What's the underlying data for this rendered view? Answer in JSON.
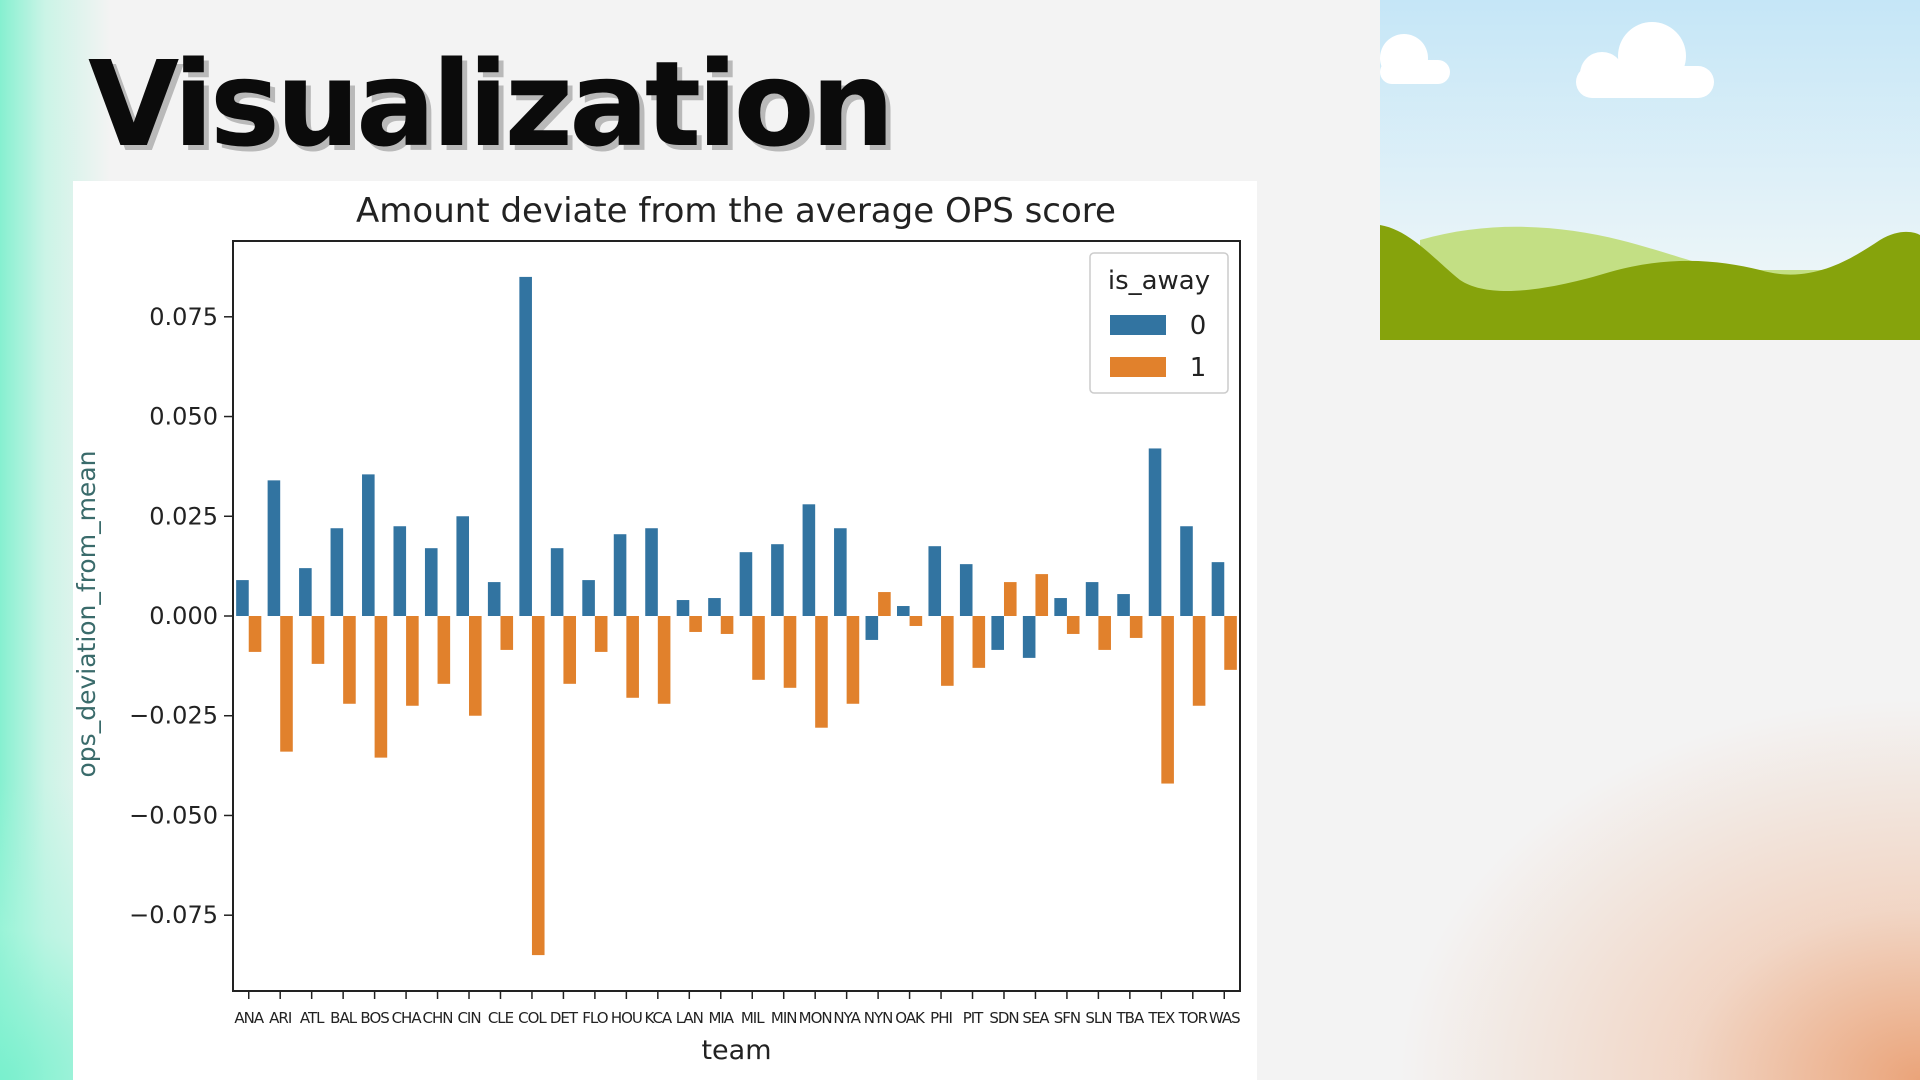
{
  "slide": {
    "title": "Visualization"
  },
  "colors": {
    "series0": "#3274a1",
    "series1": "#e1812c",
    "sky_top": "#c5e6f7",
    "hill_light": "#c3df84",
    "hill_dark": "#86a30c"
  },
  "chart_data": {
    "type": "bar",
    "title": "Amount deviate from the average OPS score",
    "xlabel": "team",
    "ylabel": "ops_deviation_from_mean",
    "ylim": [
      -0.094,
      0.094
    ],
    "yticks": [
      -0.075,
      -0.05,
      -0.025,
      0.0,
      0.025,
      0.05,
      0.075
    ],
    "ytick_labels": [
      "−0.075",
      "−0.050",
      "−0.025",
      "0.000",
      "0.025",
      "0.050",
      "0.075"
    ],
    "legend_title": "is_away",
    "legend_position": "top-right",
    "categories": [
      "ANA",
      "ARI",
      "ATL",
      "BAL",
      "BOS",
      "CHA",
      "CHN",
      "CIN",
      "CLE",
      "COL",
      "DET",
      "FLO",
      "HOU",
      "KCA",
      "LAN",
      "MIA",
      "MIL",
      "MIN",
      "MON",
      "NYA",
      "NYN",
      "OAK",
      "PHI",
      "PIT",
      "SDN",
      "SEA",
      "SFN",
      "SLN",
      "TBA",
      "TEX",
      "TOR",
      "WAS"
    ],
    "series": [
      {
        "name": "0",
        "values": [
          0.009,
          0.034,
          0.012,
          0.022,
          0.0355,
          0.0225,
          0.017,
          0.025,
          0.0085,
          0.085,
          0.017,
          0.009,
          0.0205,
          0.022,
          0.004,
          0.0045,
          0.016,
          0.018,
          0.028,
          0.022,
          -0.006,
          0.0025,
          0.0175,
          0.013,
          -0.0085,
          -0.0105,
          0.0045,
          0.0085,
          0.0055,
          0.042,
          0.0225,
          0.0135
        ]
      },
      {
        "name": "1",
        "values": [
          -0.009,
          -0.034,
          -0.012,
          -0.022,
          -0.0355,
          -0.0225,
          -0.017,
          -0.025,
          -0.0085,
          -0.085,
          -0.017,
          -0.009,
          -0.0205,
          -0.022,
          -0.004,
          -0.0045,
          -0.016,
          -0.018,
          -0.028,
          -0.022,
          0.006,
          -0.0025,
          -0.0175,
          -0.013,
          0.0085,
          0.0105,
          -0.0045,
          -0.0085,
          -0.0055,
          -0.042,
          -0.0225,
          -0.0135
        ]
      }
    ]
  }
}
